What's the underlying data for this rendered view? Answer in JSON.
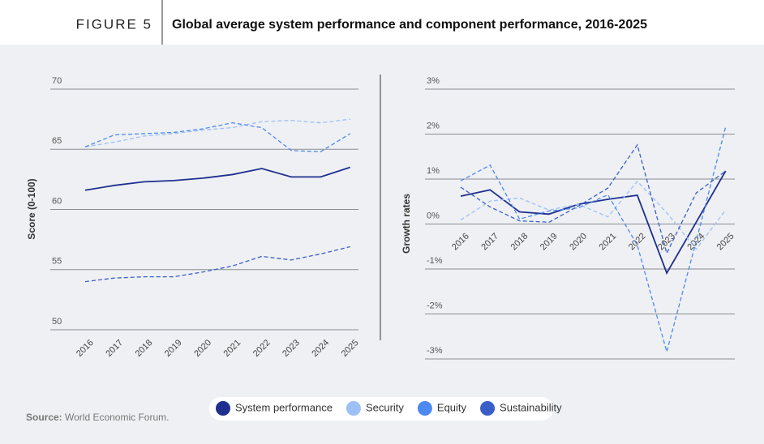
{
  "header": {
    "figure": "FIGURE 5",
    "title": "Global average system performance and component performance, 2016-2025"
  },
  "footer": {
    "source_label": "Source:",
    "source_text": "World Economic Forum."
  },
  "chart_data": [
    {
      "type": "line",
      "y_label": "Score (0-100)",
      "categories": [
        "2016",
        "2017",
        "2018",
        "2019",
        "2020",
        "2021",
        "2022",
        "2023",
        "2024",
        "2025"
      ],
      "ylim": [
        50,
        70
      ],
      "yticks": [
        50,
        55,
        60,
        65,
        70
      ],
      "grid": true,
      "series": [
        {
          "name": "System performance",
          "color": "#1f2f8f",
          "style": "solid",
          "values": [
            61.6,
            62.0,
            62.3,
            62.4,
            62.6,
            62.9,
            63.4,
            62.7,
            62.7,
            63.5
          ]
        },
        {
          "name": "Security",
          "color": "#9dc0f5",
          "style": "dashed",
          "values": [
            65.2,
            65.6,
            66.1,
            66.3,
            66.6,
            66.8,
            67.3,
            67.4,
            67.2,
            67.5
          ]
        },
        {
          "name": "Equity",
          "color": "#4d8af0",
          "style": "dashed",
          "values": [
            65.2,
            66.2,
            66.3,
            66.4,
            66.7,
            67.2,
            66.8,
            64.9,
            64.8,
            66.3
          ]
        },
        {
          "name": "Sustainability",
          "color": "#3a5ec9",
          "style": "dashed",
          "values": [
            54.0,
            54.3,
            54.4,
            54.4,
            54.8,
            55.3,
            56.1,
            55.8,
            56.3,
            56.9
          ]
        }
      ]
    },
    {
      "type": "line",
      "y_label": "Growth rates",
      "categories": [
        "2016",
        "2017",
        "2018",
        "2019",
        "2020",
        "2021",
        "2022",
        "2023",
        "2024",
        "2025"
      ],
      "ylim": [
        -3,
        3
      ],
      "yticks": [
        {
          "value": -3,
          "label": "-3%"
        },
        {
          "value": -2,
          "label": "-2%"
        },
        {
          "value": -1,
          "label": "-1%"
        },
        {
          "value": 0,
          "label": "0%"
        },
        {
          "value": 1,
          "label": "1%"
        },
        {
          "value": 2,
          "label": "2%"
        },
        {
          "value": 3,
          "label": "3%"
        }
      ],
      "grid": true,
      "series": [
        {
          "name": "System performance",
          "color": "#1f2f8f",
          "style": "solid",
          "values": [
            0.62,
            0.76,
            0.27,
            0.22,
            0.44,
            0.55,
            0.64,
            -1.09,
            0.04,
            1.18
          ]
        },
        {
          "name": "Security",
          "color": "#9dc0f5",
          "style": "dashed",
          "values": [
            0.09,
            0.51,
            0.58,
            0.31,
            0.44,
            0.16,
            0.95,
            0.25,
            -0.56,
            0.31
          ]
        },
        {
          "name": "Equity",
          "color": "#4d8af0",
          "style": "dashed",
          "values": [
            0.96,
            1.31,
            0.11,
            0.29,
            0.36,
            0.65,
            -0.47,
            -2.84,
            -0.38,
            2.16
          ]
        },
        {
          "name": "Sustainability",
          "color": "#3a5ec9",
          "style": "dashed",
          "values": [
            0.82,
            0.38,
            0.07,
            0.04,
            0.4,
            0.8,
            1.76,
            -0.65,
            0.69,
            1.18
          ]
        }
      ]
    }
  ]
}
